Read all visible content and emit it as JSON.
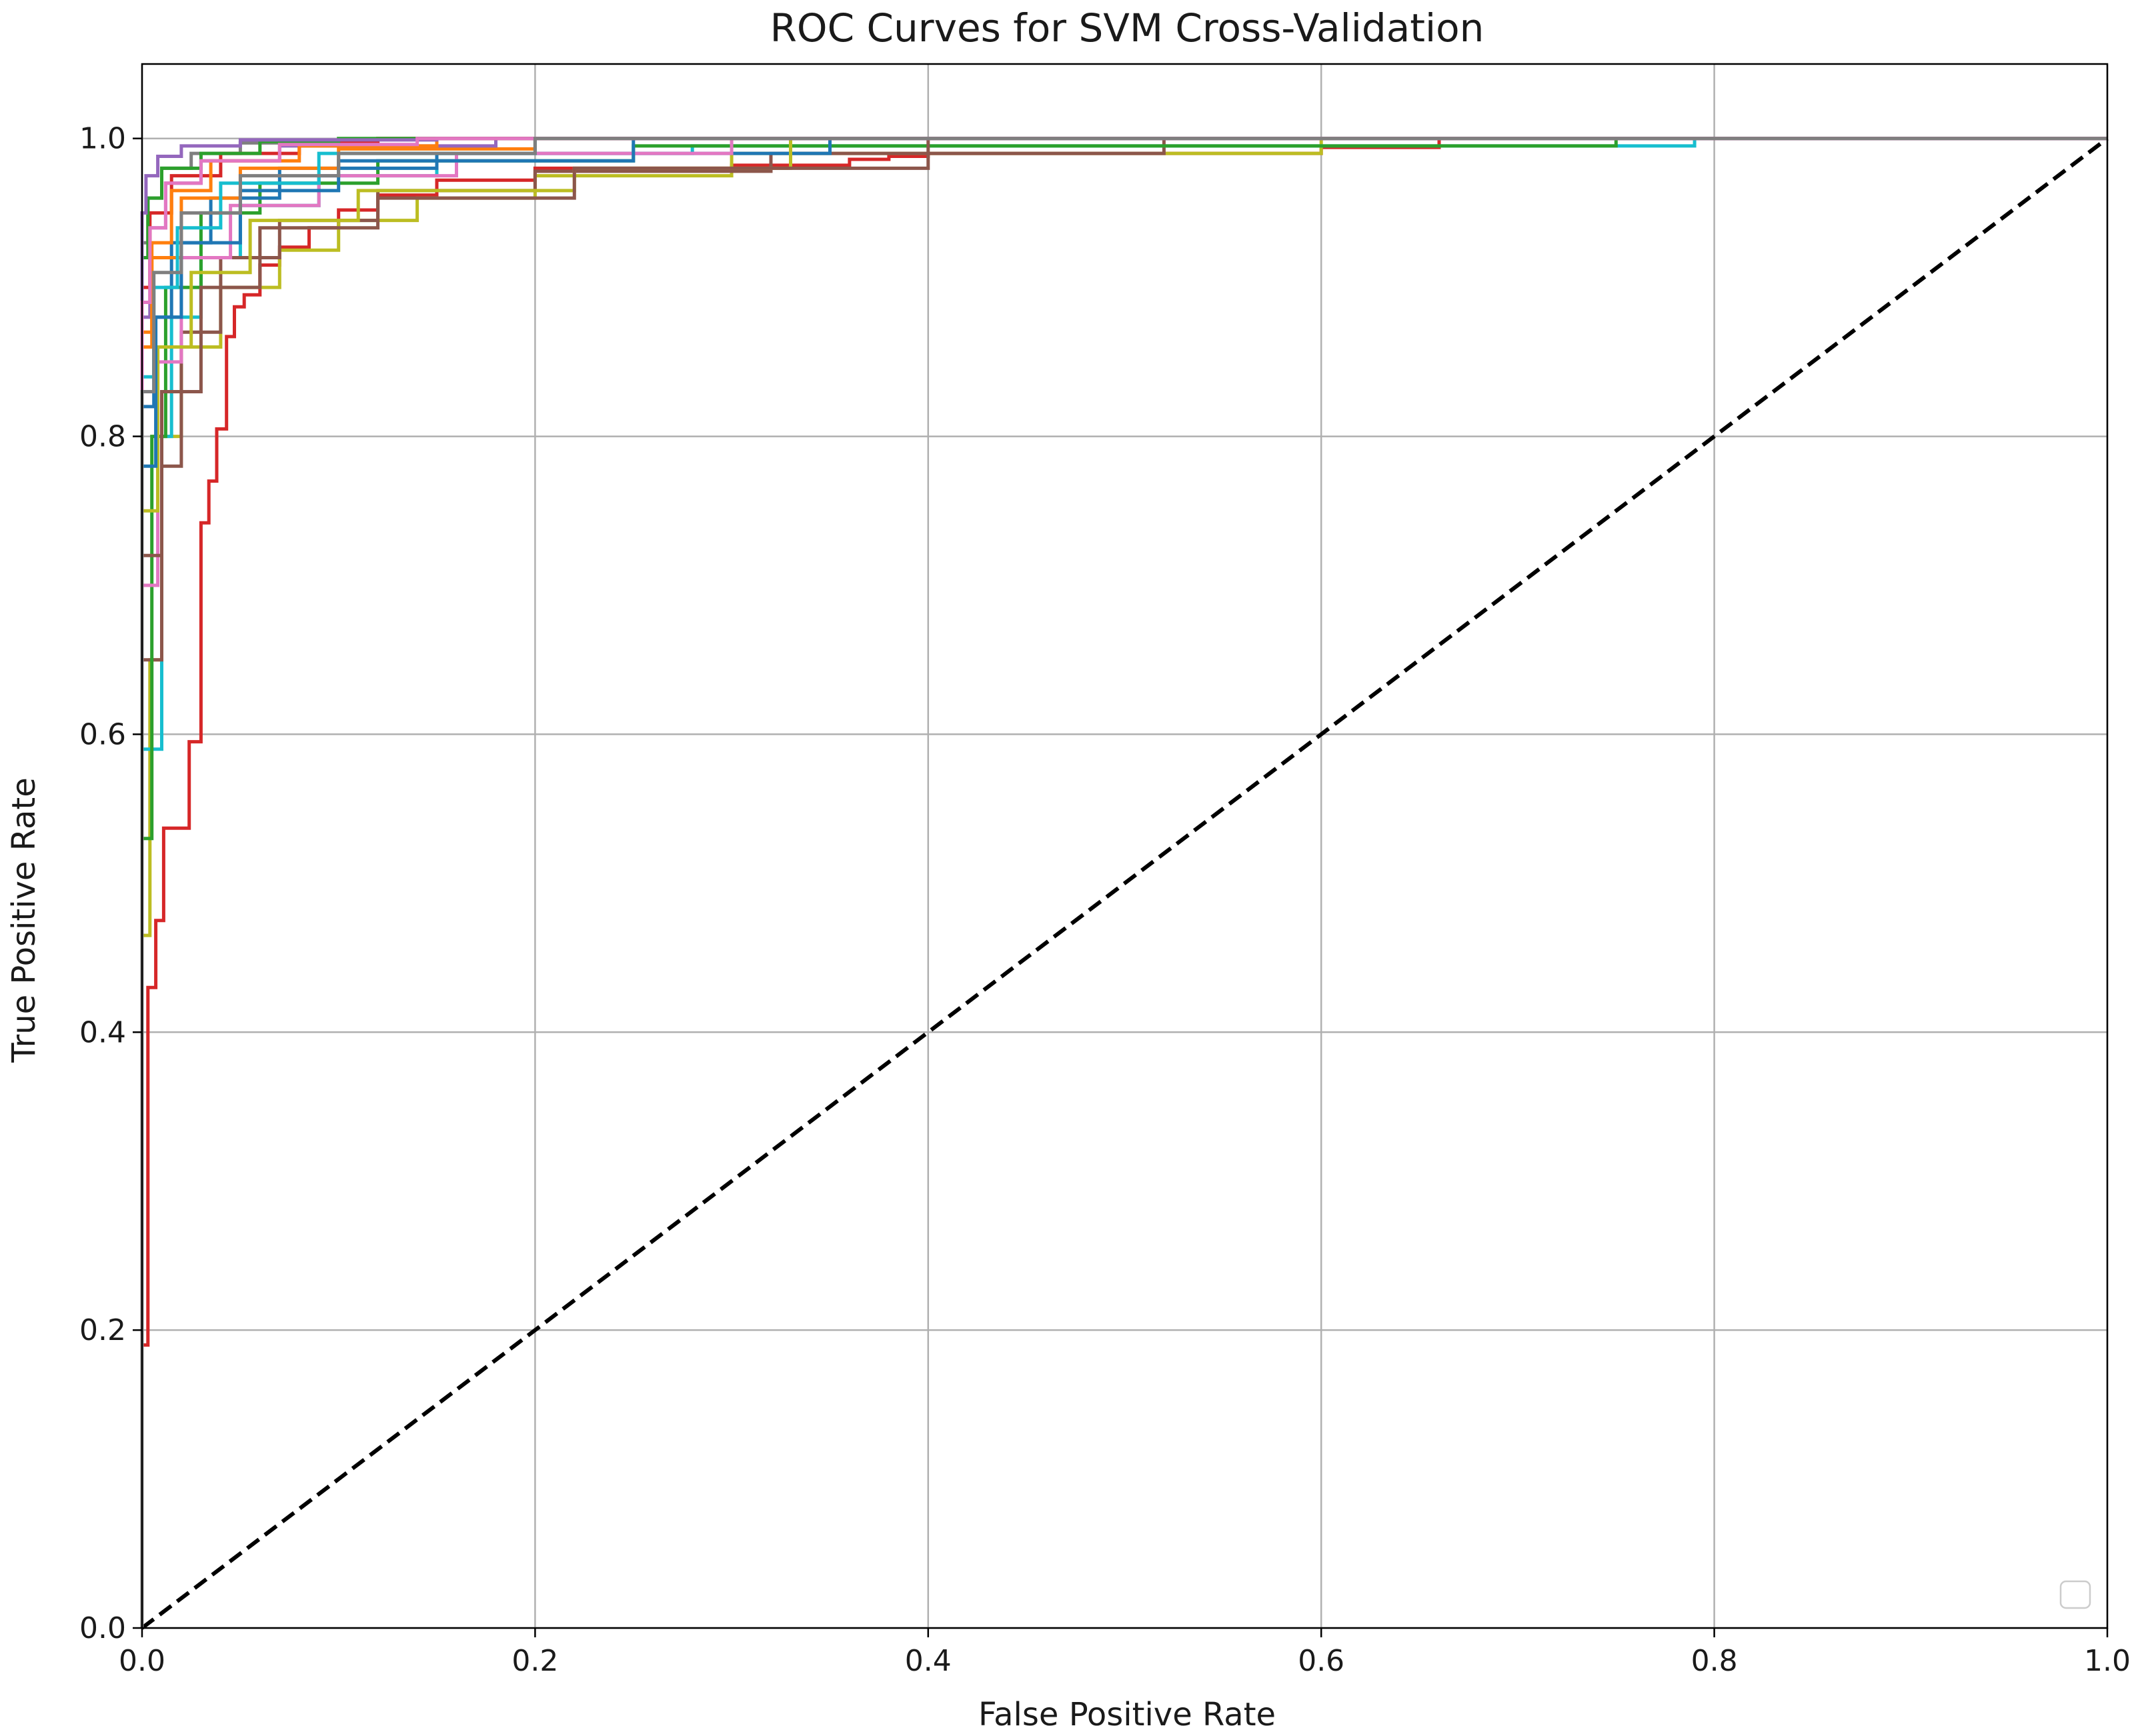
{
  "chart_data": {
    "type": "line",
    "title": "ROC Curves for SVM Cross-Validation",
    "xlabel": "False Positive Rate",
    "ylabel": "True Positive Rate",
    "xlim": [
      0.0,
      1.0
    ],
    "ylim": [
      0.0,
      1.05
    ],
    "xticks": [
      "0.0",
      "0.2",
      "0.4",
      "0.6",
      "0.8",
      "1.0"
    ],
    "yticks": [
      "0.0",
      "0.2",
      "0.4",
      "0.6",
      "0.8",
      "1.0"
    ],
    "grid": true,
    "legend": {
      "placement": "lower right",
      "entries": []
    },
    "reference_line": {
      "x": [
        0,
        1
      ],
      "y": [
        0,
        1
      ],
      "color": "#000000",
      "style": "dashed"
    },
    "series": [
      {
        "color": "#d62728",
        "x": [
          0,
          0.0,
          0.003,
          0.003,
          0.007,
          0.007,
          0.011,
          0.011,
          0.015,
          0.015,
          0.024,
          0.024,
          0.03,
          0.03,
          0.034,
          0.034,
          0.038,
          0.038,
          0.043,
          0.043,
          0.047,
          0.047,
          0.052,
          0.052,
          0.06,
          0.06,
          0.07,
          0.07,
          0.085,
          0.085,
          0.1,
          0.1,
          0.12,
          0.12,
          0.15,
          0.15,
          0.2,
          0.2,
          0.3,
          0.3,
          0.36,
          0.36,
          0.38,
          0.38,
          0.4,
          0.4,
          0.6,
          0.6,
          0.66,
          0.66,
          1.0
        ],
        "y": [
          0,
          0.19,
          0.19,
          0.43,
          0.43,
          0.475,
          0.475,
          0.537,
          0.537,
          0.537,
          0.537,
          0.595,
          0.595,
          0.742,
          0.742,
          0.77,
          0.77,
          0.805,
          0.805,
          0.867,
          0.867,
          0.887,
          0.887,
          0.895,
          0.895,
          0.915,
          0.915,
          0.927,
          0.927,
          0.94,
          0.94,
          0.952,
          0.952,
          0.962,
          0.962,
          0.972,
          0.972,
          0.98,
          0.98,
          0.982,
          0.982,
          0.986,
          0.986,
          0.988,
          0.988,
          0.99,
          0.99,
          0.994,
          0.994,
          1.0,
          1.0
        ]
      },
      {
        "color": "#bcbd22",
        "x": [
          0,
          0.0,
          0.004,
          0.004,
          0.01,
          0.01,
          0.02,
          0.02,
          0.04,
          0.04,
          0.07,
          0.07,
          0.1,
          0.1,
          0.14,
          0.14,
          0.2,
          0.2,
          0.3,
          0.3,
          0.6,
          0.6,
          1.0
        ],
        "y": [
          0,
          0.465,
          0.465,
          0.65,
          0.65,
          0.8,
          0.8,
          0.86,
          0.86,
          0.9,
          0.9,
          0.925,
          0.925,
          0.945,
          0.945,
          0.96,
          0.96,
          0.975,
          0.975,
          0.99,
          0.99,
          1.0,
          1.0
        ]
      },
      {
        "color": "#17becf",
        "x": [
          0,
          0.0,
          0.01,
          0.01,
          0.015,
          0.015,
          0.03,
          0.03,
          0.05,
          0.05,
          0.09,
          0.09,
          0.15,
          0.15,
          0.28,
          0.28,
          0.79,
          0.79,
          1.0
        ],
        "y": [
          0,
          0.59,
          0.59,
          0.8,
          0.8,
          0.88,
          0.88,
          0.92,
          0.92,
          0.955,
          0.955,
          0.975,
          0.975,
          0.99,
          0.99,
          0.995,
          0.995,
          1.0,
          1.0
        ]
      },
      {
        "color": "#8c564b",
        "x": [
          0,
          0.0,
          0.01,
          0.01,
          0.02,
          0.02,
          0.04,
          0.04,
          0.07,
          0.07,
          0.12,
          0.12,
          0.2,
          0.2,
          0.32,
          0.32,
          0.52,
          0.52,
          1.0
        ],
        "y": [
          0,
          0.65,
          0.65,
          0.78,
          0.78,
          0.87,
          0.87,
          0.92,
          0.92,
          0.945,
          0.945,
          0.965,
          0.965,
          0.978,
          0.978,
          0.99,
          0.99,
          1.0,
          1.0
        ]
      },
      {
        "color": "#2ca02c",
        "x": [
          0,
          0.0,
          0.005,
          0.005,
          0.012,
          0.012,
          0.03,
          0.03,
          0.06,
          0.06,
          0.12,
          0.12,
          0.25,
          0.25,
          0.75,
          0.75,
          1.0
        ],
        "y": [
          0,
          0.53,
          0.53,
          0.8,
          0.8,
          0.9,
          0.9,
          0.95,
          0.95,
          0.97,
          0.97,
          0.985,
          0.985,
          0.995,
          0.995,
          1.0,
          1.0
        ]
      },
      {
        "color": "#1f77b4",
        "x": [
          0,
          0.0,
          0.006,
          0.006,
          0.015,
          0.015,
          0.035,
          0.035,
          0.07,
          0.07,
          0.15,
          0.15,
          0.35,
          0.35,
          1.0
        ],
        "y": [
          0,
          0.82,
          0.82,
          0.88,
          0.88,
          0.93,
          0.93,
          0.96,
          0.96,
          0.98,
          0.98,
          0.99,
          0.99,
          1.0,
          1.0
        ]
      },
      {
        "color": "#ff7f0e",
        "x": [
          0,
          0.0,
          0.005,
          0.005,
          0.02,
          0.02,
          0.05,
          0.05,
          0.1,
          0.1,
          0.2,
          0.2,
          1.0
        ],
        "y": [
          0,
          0.86,
          0.86,
          0.92,
          0.92,
          0.96,
          0.96,
          0.98,
          0.98,
          0.993,
          0.993,
          1.0,
          1.0
        ]
      },
      {
        "color": "#e377c2",
        "x": [
          0,
          0.0,
          0.008,
          0.008,
          0.02,
          0.02,
          0.045,
          0.045,
          0.09,
          0.09,
          0.16,
          0.16,
          0.3,
          0.3,
          1.0
        ],
        "y": [
          0,
          0.7,
          0.7,
          0.85,
          0.85,
          0.92,
          0.92,
          0.955,
          0.955,
          0.975,
          0.975,
          0.99,
          0.99,
          1.0,
          1.0
        ]
      },
      {
        "color": "#9467bd",
        "x": [
          0,
          0.0,
          0.004,
          0.004,
          0.012,
          0.012,
          0.03,
          0.03,
          0.07,
          0.07,
          0.18,
          0.18,
          1.0
        ],
        "y": [
          0,
          0.88,
          0.88,
          0.94,
          0.94,
          0.97,
          0.97,
          0.985,
          0.985,
          0.995,
          0.995,
          1.0,
          1.0
        ]
      },
      {
        "color": "#7f7f7f",
        "x": [
          0,
          0.0,
          0.003,
          0.003,
          0.01,
          0.01,
          0.025,
          0.025,
          0.05,
          0.05,
          0.12,
          0.12,
          1.0
        ],
        "y": [
          0,
          0.93,
          0.93,
          0.96,
          0.96,
          0.98,
          0.98,
          0.99,
          0.99,
          0.997,
          0.997,
          1.0,
          1.0
        ]
      },
      {
        "color": "#d62728",
        "x": [
          0,
          0.0,
          0.004,
          0.004,
          0.015,
          0.015,
          0.04,
          0.04,
          0.08,
          0.08,
          0.12,
          0.12,
          1.0
        ],
        "y": [
          0,
          0.9,
          0.9,
          0.95,
          0.95,
          0.975,
          0.975,
          0.99,
          0.99,
          0.997,
          0.997,
          1.0,
          1.0
        ]
      },
      {
        "color": "#bcbd22",
        "x": [
          0,
          0.0,
          0.008,
          0.008,
          0.025,
          0.025,
          0.055,
          0.055,
          0.11,
          0.11,
          0.22,
          0.22,
          0.33,
          0.33,
          1.0
        ],
        "y": [
          0,
          0.75,
          0.75,
          0.86,
          0.86,
          0.91,
          0.91,
          0.945,
          0.945,
          0.965,
          0.965,
          0.98,
          0.98,
          1.0,
          1.0
        ]
      },
      {
        "color": "#17becf",
        "x": [
          0,
          0.0,
          0.006,
          0.006,
          0.018,
          0.018,
          0.04,
          0.04,
          0.09,
          0.09,
          0.2,
          0.2,
          1.0
        ],
        "y": [
          0,
          0.84,
          0.84,
          0.9,
          0.9,
          0.94,
          0.94,
          0.97,
          0.97,
          0.99,
          0.99,
          1.0,
          1.0
        ]
      },
      {
        "color": "#8c564b",
        "x": [
          0,
          0.0,
          0.01,
          0.01,
          0.03,
          0.03,
          0.06,
          0.06,
          0.12,
          0.12,
          0.22,
          0.22,
          0.4,
          0.4,
          1.0
        ],
        "y": [
          0,
          0.72,
          0.72,
          0.83,
          0.83,
          0.9,
          0.9,
          0.94,
          0.94,
          0.96,
          0.96,
          0.98,
          0.98,
          1.0,
          1.0
        ]
      },
      {
        "color": "#2ca02c",
        "x": [
          0,
          0.0,
          0.003,
          0.003,
          0.01,
          0.01,
          0.03,
          0.03,
          0.06,
          0.06,
          0.1,
          0.1,
          1.0
        ],
        "y": [
          0,
          0.92,
          0.92,
          0.96,
          0.96,
          0.98,
          0.98,
          0.99,
          0.99,
          0.998,
          0.998,
          1.0,
          1.0
        ]
      },
      {
        "color": "#1f77b4",
        "x": [
          0,
          0.0,
          0.007,
          0.007,
          0.02,
          0.02,
          0.05,
          0.05,
          0.1,
          0.1,
          0.25,
          0.25,
          1.0
        ],
        "y": [
          0,
          0.78,
          0.78,
          0.88,
          0.88,
          0.93,
          0.93,
          0.965,
          0.965,
          0.985,
          0.985,
          1.0,
          1.0
        ]
      },
      {
        "color": "#ff7f0e",
        "x": [
          0,
          0.0,
          0.005,
          0.005,
          0.015,
          0.015,
          0.035,
          0.035,
          0.08,
          0.08,
          0.15,
          0.15,
          1.0
        ],
        "y": [
          0,
          0.87,
          0.87,
          0.93,
          0.93,
          0.965,
          0.965,
          0.985,
          0.985,
          0.995,
          0.995,
          1.0,
          1.0
        ]
      },
      {
        "color": "#9467bd",
        "x": [
          0,
          0.0,
          0.002,
          0.002,
          0.008,
          0.008,
          0.02,
          0.02,
          0.05,
          0.05,
          0.15,
          0.15,
          1.0
        ],
        "y": [
          0,
          0.95,
          0.95,
          0.975,
          0.975,
          0.988,
          0.988,
          0.995,
          0.995,
          0.999,
          0.999,
          1.0,
          1.0
        ]
      },
      {
        "color": "#e377c2",
        "x": [
          0,
          0.0,
          0.004,
          0.004,
          0.012,
          0.012,
          0.03,
          0.03,
          0.07,
          0.07,
          0.14,
          0.14,
          1.0
        ],
        "y": [
          0,
          0.89,
          0.89,
          0.94,
          0.94,
          0.97,
          0.97,
          0.985,
          0.985,
          0.996,
          0.996,
          1.0,
          1.0
        ]
      },
      {
        "color": "#7f7f7f",
        "x": [
          0,
          0.0,
          0.006,
          0.006,
          0.02,
          0.02,
          0.05,
          0.05,
          0.1,
          0.1,
          0.2,
          0.2,
          1.0
        ],
        "y": [
          0,
          0.83,
          0.83,
          0.91,
          0.91,
          0.95,
          0.95,
          0.975,
          0.975,
          0.99,
          0.99,
          1.0,
          1.0
        ]
      }
    ]
  }
}
